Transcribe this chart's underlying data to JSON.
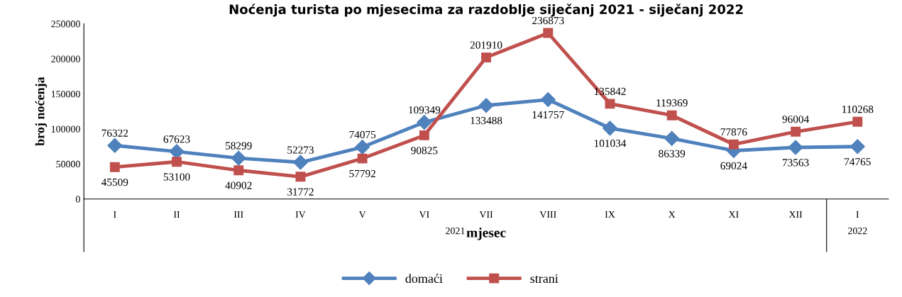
{
  "chart_data": {
    "type": "line",
    "title": "Noćenja turista po mjesecima za razdoblje siječanj 2021 - siječanj 2022",
    "xlabel": "mjesec",
    "ylabel": "broj noćenja",
    "categories": [
      "I",
      "II",
      "III",
      "IV",
      "V",
      "VI",
      "VII",
      "VIII",
      "IX",
      "X",
      "XI",
      "XII",
      "I"
    ],
    "series": [
      {
        "name": "domaći",
        "color": "#4f81bd",
        "marker": "diamond",
        "values": [
          76322,
          67623,
          58299,
          52273,
          74075,
          109349,
          133488,
          141757,
          101034,
          86339,
          69024,
          73563,
          74765
        ]
      },
      {
        "name": "strani",
        "color": "#c0504d",
        "marker": "square",
        "values": [
          45509,
          53100,
          40902,
          31772,
          57792,
          90825,
          201910,
          236873,
          135842,
          119369,
          77876,
          96004,
          110268
        ]
      }
    ],
    "ylim": [
      0,
      250000
    ],
    "yticks": [
      0,
      50000,
      100000,
      150000,
      200000,
      250000
    ],
    "grid": false,
    "legend": "bottom",
    "data_labels": true,
    "line_style": "solid",
    "annotations": [
      "2021",
      "2022"
    ]
  }
}
